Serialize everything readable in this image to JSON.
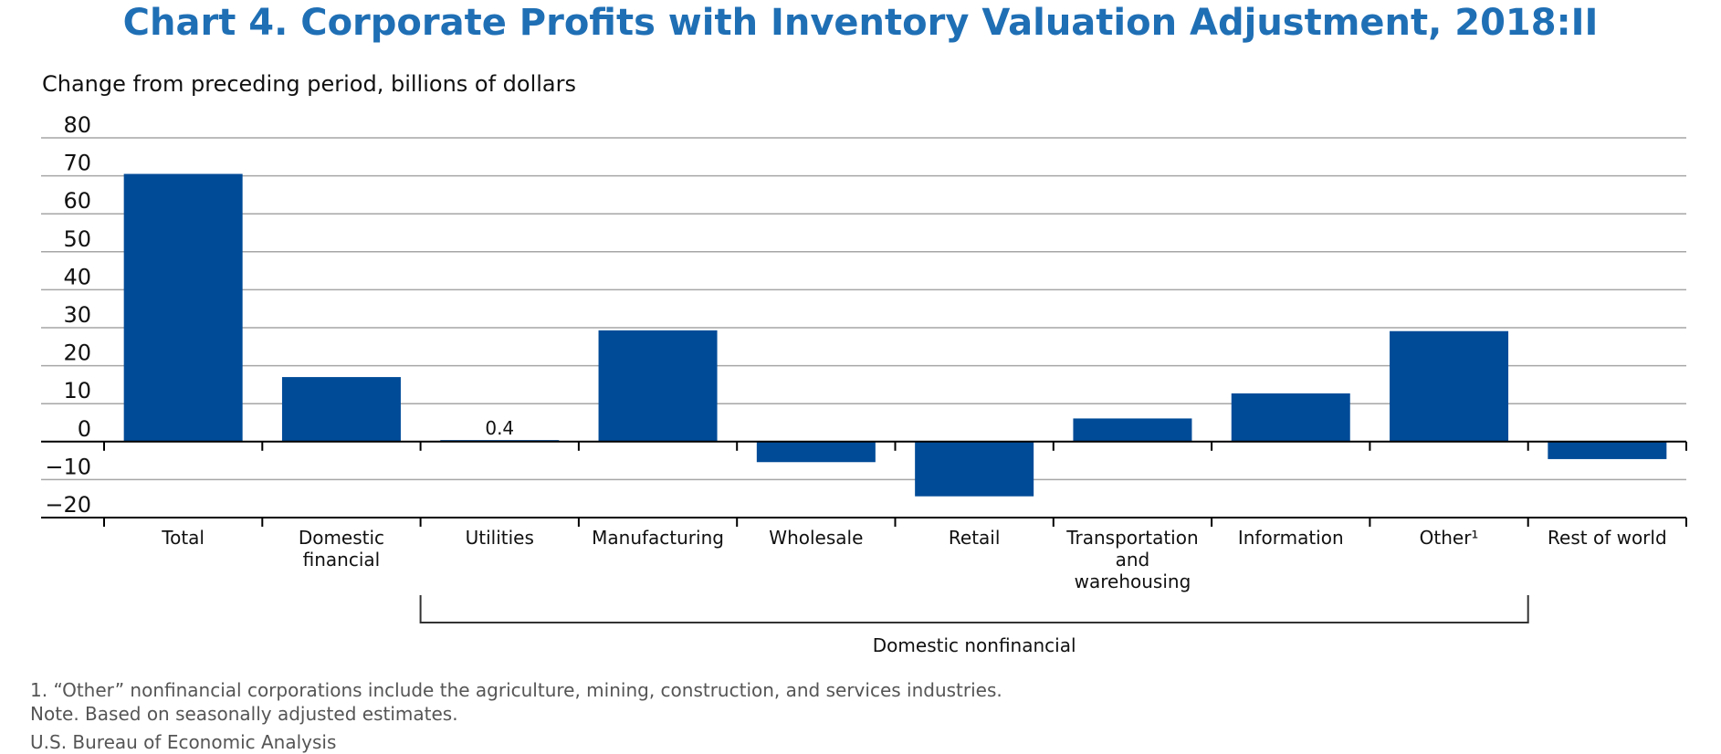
{
  "title": "Chart 4. Corporate Profits with Inventory Valuation Adjustment, 2018:II",
  "footnotes": [
    "1. “Other” nonfinancial corporations include the agriculture, mining, construction, and services industries.",
    "Note. Based on seasonally adjusted estimates."
  ],
  "source": "U.S. Bureau of Economic Analysis",
  "colors": {
    "bar": "#004b98",
    "title": "#1f6fb5",
    "grid": "#a6a6a6"
  },
  "chart_data": {
    "type": "bar",
    "ylabel": "Change from preceding period, billions of dollars",
    "ylim": [
      -20,
      80
    ],
    "yticks": [
      80,
      70,
      60,
      50,
      40,
      30,
      20,
      10,
      0,
      -10,
      -20
    ],
    "ytick_labels": [
      "80",
      "70",
      "60",
      "50",
      "40",
      "30",
      "20",
      "10",
      "0",
      "−10",
      "−20"
    ],
    "grid": true,
    "categories": [
      [
        "Total"
      ],
      [
        "Domestic",
        "financial"
      ],
      [
        "Utilities"
      ],
      [
        "Manufacturing"
      ],
      [
        "Wholesale"
      ],
      [
        "Retail"
      ],
      [
        "Transportation",
        "and",
        "warehousing"
      ],
      [
        "Information"
      ],
      [
        "Other¹"
      ],
      [
        "Rest of world"
      ]
    ],
    "values": [
      70.5,
      17.0,
      0.4,
      29.3,
      -5.4,
      -14.4,
      6.1,
      12.7,
      29.1,
      -4.6
    ],
    "data_labels": [
      null,
      null,
      "0.4",
      null,
      null,
      null,
      null,
      null,
      null,
      null
    ],
    "group_bracket": {
      "label": "Domestic nonfinancial",
      "from_index": 2,
      "to_index": 8
    }
  }
}
